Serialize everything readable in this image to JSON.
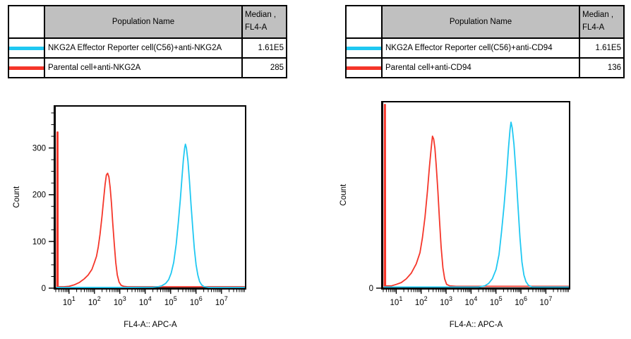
{
  "colors": {
    "reporter_series": "#1fc8f2",
    "parental_series": "#f5362a",
    "table_header_bg": "#c0c0c0",
    "axis": "#000000",
    "background": "#ffffff"
  },
  "panels": [
    {
      "table": {
        "header": {
          "population": "Population Name",
          "median_line1": "Median ,",
          "median_line2": "FL4-A"
        },
        "rows": [
          {
            "swatch_color": "#1fc8f2",
            "name": "NKG2A Effector Reporter cell(C56)+anti-NKG2A",
            "median": "1.61E5"
          },
          {
            "swatch_color": "#f5362a",
            "name": "Parental cell+anti-NKG2A",
            "median": "285"
          }
        ]
      }
    },
    {
      "table": {
        "header": {
          "population": "Population Name",
          "median_line1": "Median ,",
          "median_line2": "FL4-A"
        },
        "rows": [
          {
            "swatch_color": "#1fc8f2",
            "name": "NKG2A  Effector Reporter cell(C56)+anti-CD94",
            "median": "1.61E5"
          },
          {
            "swatch_color": "#f5362a",
            "name": "Parental cell+anti-CD94",
            "median": "136"
          }
        ]
      }
    }
  ],
  "chart_data": [
    {
      "type": "line",
      "title": "",
      "xlabel": "FL4-A:: APC-A",
      "ylabel": "Count",
      "x_scale": "log10",
      "xlim_log10": [
        0.45,
        7.95
      ],
      "x_major_ticks_log10": [
        1,
        2,
        3,
        4,
        5,
        6,
        7
      ],
      "x_tick_label_base": "10",
      "ylim": [
        0,
        390
      ],
      "yticks": [
        {
          "value": 0,
          "label": "0"
        },
        {
          "value": 100,
          "label": "100"
        },
        {
          "value": 200,
          "label": "200"
        },
        {
          "value": 300,
          "label": "300"
        }
      ],
      "y_minor_step": 25,
      "grid": false,
      "legend": "table-above",
      "series": [
        {
          "name": "Parental cell+anti-NKG2A",
          "color": "#f5362a",
          "peak_log10_x": 2.5,
          "peak_count": 246,
          "axis_pileup_count": 334,
          "points": [
            [
              0.52,
              2
            ],
            [
              0.53,
              334
            ],
            [
              0.56,
              334
            ],
            [
              0.57,
              3
            ],
            [
              0.8,
              3
            ],
            [
              1.0,
              4
            ],
            [
              1.2,
              7
            ],
            [
              1.4,
              12
            ],
            [
              1.6,
              20
            ],
            [
              1.75,
              28
            ],
            [
              1.9,
              40
            ],
            [
              2.0,
              55
            ],
            [
              2.08,
              68
            ],
            [
              2.15,
              88
            ],
            [
              2.22,
              115
            ],
            [
              2.3,
              155
            ],
            [
              2.36,
              190
            ],
            [
              2.42,
              222
            ],
            [
              2.47,
              242
            ],
            [
              2.52,
              246
            ],
            [
              2.57,
              238
            ],
            [
              2.62,
              215
            ],
            [
              2.67,
              182
            ],
            [
              2.72,
              140
            ],
            [
              2.78,
              95
            ],
            [
              2.84,
              55
            ],
            [
              2.9,
              28
            ],
            [
              2.97,
              13
            ],
            [
              3.05,
              6
            ],
            [
              3.15,
              4
            ],
            [
              3.3,
              3
            ],
            [
              4.0,
              3
            ],
            [
              5.0,
              3
            ],
            [
              6.0,
              3
            ],
            [
              7.0,
              3
            ],
            [
              7.9,
              3
            ]
          ]
        },
        {
          "name": "NKG2A Effector Reporter cell(C56)+anti-NKG2A",
          "color": "#1fc8f2",
          "peak_log10_x": 5.56,
          "peak_count": 308,
          "points": [
            [
              0.52,
              1.5
            ],
            [
              1.5,
              1.5
            ],
            [
              3.0,
              1.5
            ],
            [
              4.3,
              2
            ],
            [
              4.5,
              3
            ],
            [
              4.65,
              5
            ],
            [
              4.8,
              10
            ],
            [
              4.92,
              18
            ],
            [
              5.02,
              32
            ],
            [
              5.12,
              55
            ],
            [
              5.22,
              95
            ],
            [
              5.3,
              140
            ],
            [
              5.38,
              190
            ],
            [
              5.45,
              240
            ],
            [
              5.5,
              275
            ],
            [
              5.55,
              300
            ],
            [
              5.58,
              308
            ],
            [
              5.62,
              300
            ],
            [
              5.68,
              272
            ],
            [
              5.74,
              230
            ],
            [
              5.8,
              180
            ],
            [
              5.87,
              128
            ],
            [
              5.93,
              85
            ],
            [
              6.0,
              50
            ],
            [
              6.07,
              28
            ],
            [
              6.14,
              14
            ],
            [
              6.22,
              7
            ],
            [
              6.32,
              3
            ],
            [
              6.5,
              1.5
            ],
            [
              7.0,
              1.5
            ],
            [
              7.9,
              1.5
            ]
          ]
        }
      ]
    },
    {
      "type": "line",
      "title": "",
      "xlabel": "FL4-A:: APC-A",
      "ylabel": "Count",
      "x_scale": "log10",
      "xlim_log10": [
        0.45,
        7.95
      ],
      "x_major_ticks_log10": [
        1,
        2,
        3,
        4,
        5,
        6,
        7
      ],
      "x_tick_label_base": "10",
      "y_axis_note": "only 0 is labeled; heights given as fraction of plot height",
      "ylim": [
        0,
        1
      ],
      "yticks": [
        {
          "value": 0,
          "label": "0"
        }
      ],
      "y_minor_step": null,
      "grid": false,
      "legend": "table-above",
      "series": [
        {
          "name": "Parental cell+anti-CD94",
          "color": "#f5362a",
          "peak_log10_x": 2.45,
          "peak_fraction": 0.815,
          "axis_pileup_fraction": 0.985,
          "points": [
            [
              0.52,
              0.01
            ],
            [
              0.53,
              0.985
            ],
            [
              0.56,
              0.985
            ],
            [
              0.57,
              0.012
            ],
            [
              0.8,
              0.012
            ],
            [
              1.0,
              0.02
            ],
            [
              1.2,
              0.03
            ],
            [
              1.4,
              0.05
            ],
            [
              1.6,
              0.08
            ],
            [
              1.8,
              0.13
            ],
            [
              1.95,
              0.19
            ],
            [
              2.05,
              0.27
            ],
            [
              2.15,
              0.38
            ],
            [
              2.25,
              0.52
            ],
            [
              2.33,
              0.65
            ],
            [
              2.4,
              0.75
            ],
            [
              2.45,
              0.815
            ],
            [
              2.5,
              0.8
            ],
            [
              2.55,
              0.75
            ],
            [
              2.6,
              0.66
            ],
            [
              2.67,
              0.52
            ],
            [
              2.73,
              0.37
            ],
            [
              2.8,
              0.22
            ],
            [
              2.87,
              0.11
            ],
            [
              2.94,
              0.05
            ],
            [
              3.02,
              0.02
            ],
            [
              3.15,
              0.012
            ],
            [
              3.4,
              0.01
            ],
            [
              4.5,
              0.01
            ],
            [
              6.0,
              0.01
            ],
            [
              7.9,
              0.01
            ]
          ]
        },
        {
          "name": "NKG2A  Effector Reporter cell(C56)+anti-CD94",
          "color": "#1fc8f2",
          "peak_log10_x": 5.6,
          "peak_fraction": 0.89,
          "points": [
            [
              0.52,
              0.006
            ],
            [
              2.0,
              0.006
            ],
            [
              4.3,
              0.006
            ],
            [
              4.55,
              0.012
            ],
            [
              4.7,
              0.025
            ],
            [
              4.85,
              0.05
            ],
            [
              5.0,
              0.1
            ],
            [
              5.12,
              0.18
            ],
            [
              5.22,
              0.3
            ],
            [
              5.32,
              0.44
            ],
            [
              5.42,
              0.6
            ],
            [
              5.5,
              0.75
            ],
            [
              5.56,
              0.85
            ],
            [
              5.6,
              0.89
            ],
            [
              5.65,
              0.86
            ],
            [
              5.72,
              0.77
            ],
            [
              5.8,
              0.62
            ],
            [
              5.88,
              0.44
            ],
            [
              5.96,
              0.27
            ],
            [
              6.04,
              0.14
            ],
            [
              6.12,
              0.07
            ],
            [
              6.2,
              0.035
            ],
            [
              6.3,
              0.015
            ],
            [
              6.45,
              0.006
            ],
            [
              7.0,
              0.006
            ],
            [
              7.9,
              0.006
            ]
          ]
        }
      ]
    }
  ]
}
